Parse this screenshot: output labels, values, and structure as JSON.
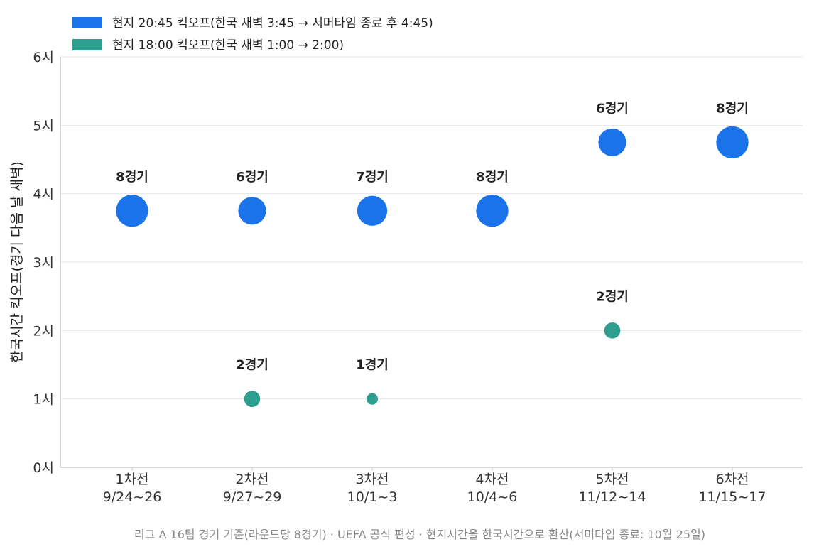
{
  "chart_data": {
    "type": "scatter",
    "title": "",
    "ylabel": "한국시간 킥오프(경기 다음 날 새벽)",
    "xlabel": "",
    "ylim": [
      0,
      6
    ],
    "yticks": [
      0,
      1,
      2,
      3,
      4,
      5,
      6
    ],
    "ytick_labels": [
      "0시",
      "1시",
      "2시",
      "3시",
      "4시",
      "5시",
      "6시"
    ],
    "categories": [
      {
        "round": "1차전",
        "dates": "9/24~26"
      },
      {
        "round": "2차전",
        "dates": "9/27~29"
      },
      {
        "round": "3차전",
        "dates": "10/1~3"
      },
      {
        "round": "4차전",
        "dates": "10/4~6"
      },
      {
        "round": "5차전",
        "dates": "11/12~14"
      },
      {
        "round": "6차전",
        "dates": "11/15~17"
      }
    ],
    "grid": "horizontal",
    "legend_position": "top-left",
    "series": [
      {
        "name": "현지 20:45 킥오프(한국 새벽 3:45 → 서머타임 종료 후 4:45)",
        "color": "#1a73e8",
        "points": [
          {
            "category": "1차전",
            "y": 3.75,
            "count": 8,
            "label": "8경기"
          },
          {
            "category": "2차전",
            "y": 3.75,
            "count": 6,
            "label": "6경기"
          },
          {
            "category": "3차전",
            "y": 3.75,
            "count": 7,
            "label": "7경기"
          },
          {
            "category": "4차전",
            "y": 3.75,
            "count": 8,
            "label": "8경기"
          },
          {
            "category": "5차전",
            "y": 4.75,
            "count": 6,
            "label": "6경기"
          },
          {
            "category": "6차전",
            "y": 4.75,
            "count": 8,
            "label": "8경기"
          }
        ]
      },
      {
        "name": "현지 18:00 킥오프(한국 새벽 1:00 → 2:00)",
        "color": "#2e9e8f",
        "points": [
          {
            "category": "2차전",
            "y": 1,
            "count": 2,
            "label": "2경기"
          },
          {
            "category": "3차전",
            "y": 1,
            "count": 1,
            "label": "1경기"
          },
          {
            "category": "5차전",
            "y": 2,
            "count": 2,
            "label": "2경기"
          }
        ]
      }
    ],
    "footnote": "리그 A 16팀 경기 기준(라운드당 8경기) · UEFA 공식 편성 · 현지시간을 한국시간으로 환산(서머타임 종료: 10월 25일)"
  }
}
